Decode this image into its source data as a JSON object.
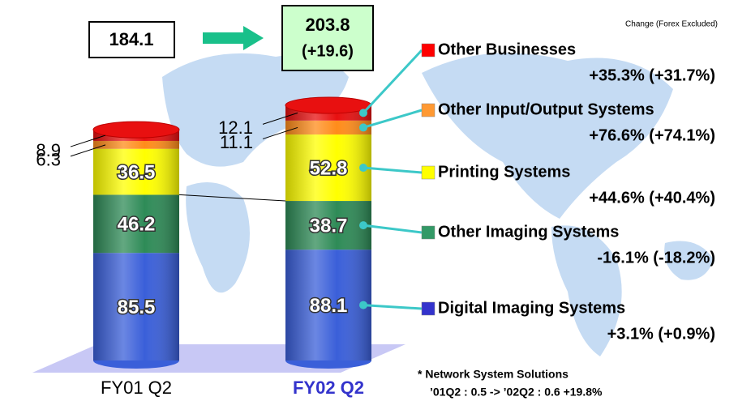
{
  "chart_data": {
    "type": "bar",
    "stacked": true,
    "note": "Change (Forex Excluded)",
    "categories": [
      "FY01 Q2",
      "FY02 Q2"
    ],
    "totals": [
      184.1,
      203.8
    ],
    "total_change": "(+19.6)",
    "series": [
      {
        "name": "Digital Imaging Systems",
        "color": "#3a5fd9",
        "legend_color": "#3333cc",
        "values": [
          85.5,
          88.1
        ],
        "change": "+3.1% (+0.9%)"
      },
      {
        "name": "Other Imaging Systems",
        "color": "#2e8b57",
        "legend_color": "#339966",
        "values": [
          46.2,
          38.7
        ],
        "change": "-16.1% (-18.2%)"
      },
      {
        "name": "Printing Systems",
        "color": "#ffff00",
        "legend_color": "#ffff00",
        "values": [
          36.5,
          52.8
        ],
        "change": "+44.6% (+40.4%)"
      },
      {
        "name": "Other Input/Output Systems",
        "color": "#ff8c1a",
        "legend_color": "#ff9933",
        "values": [
          6.3,
          11.1
        ],
        "change": "+76.6% (+74.1%)"
      },
      {
        "name": "Other Businesses",
        "color": "#e81010",
        "legend_color": "#ff0000",
        "values": [
          8.9,
          12.1
        ],
        "change": "+35.3% (+31.7%)"
      }
    ],
    "footnote": [
      "* Network System Solutions",
      "’01Q2 : 0.5 -> ’02Q2 : 0.6   +19.8%"
    ]
  }
}
